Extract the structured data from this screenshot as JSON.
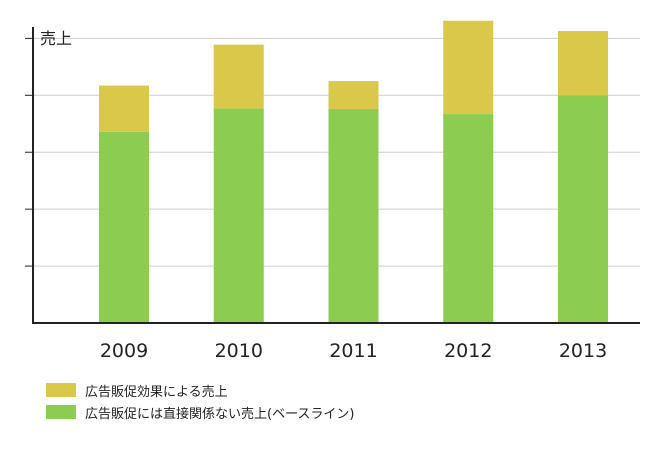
{
  "chart_data": {
    "type": "bar",
    "stacked": true,
    "ylabel": "売上",
    "categories": [
      "2009",
      "2010",
      "2011",
      "2012",
      "2013"
    ],
    "series": [
      {
        "name": "広告販促には直接関係ない売上(ベースライン)",
        "color": "#8ccc50",
        "values": [
          3.36,
          3.77,
          3.76,
          3.67,
          4.0
        ]
      },
      {
        "name": "広告販促効果による売上",
        "color": "#d9c84a",
        "values": [
          0.81,
          1.12,
          0.49,
          1.64,
          1.13
        ]
      }
    ],
    "ylim": [
      0,
      5.2
    ],
    "ytick_step": 1,
    "grid": true,
    "legend_position": "bottom-left"
  }
}
